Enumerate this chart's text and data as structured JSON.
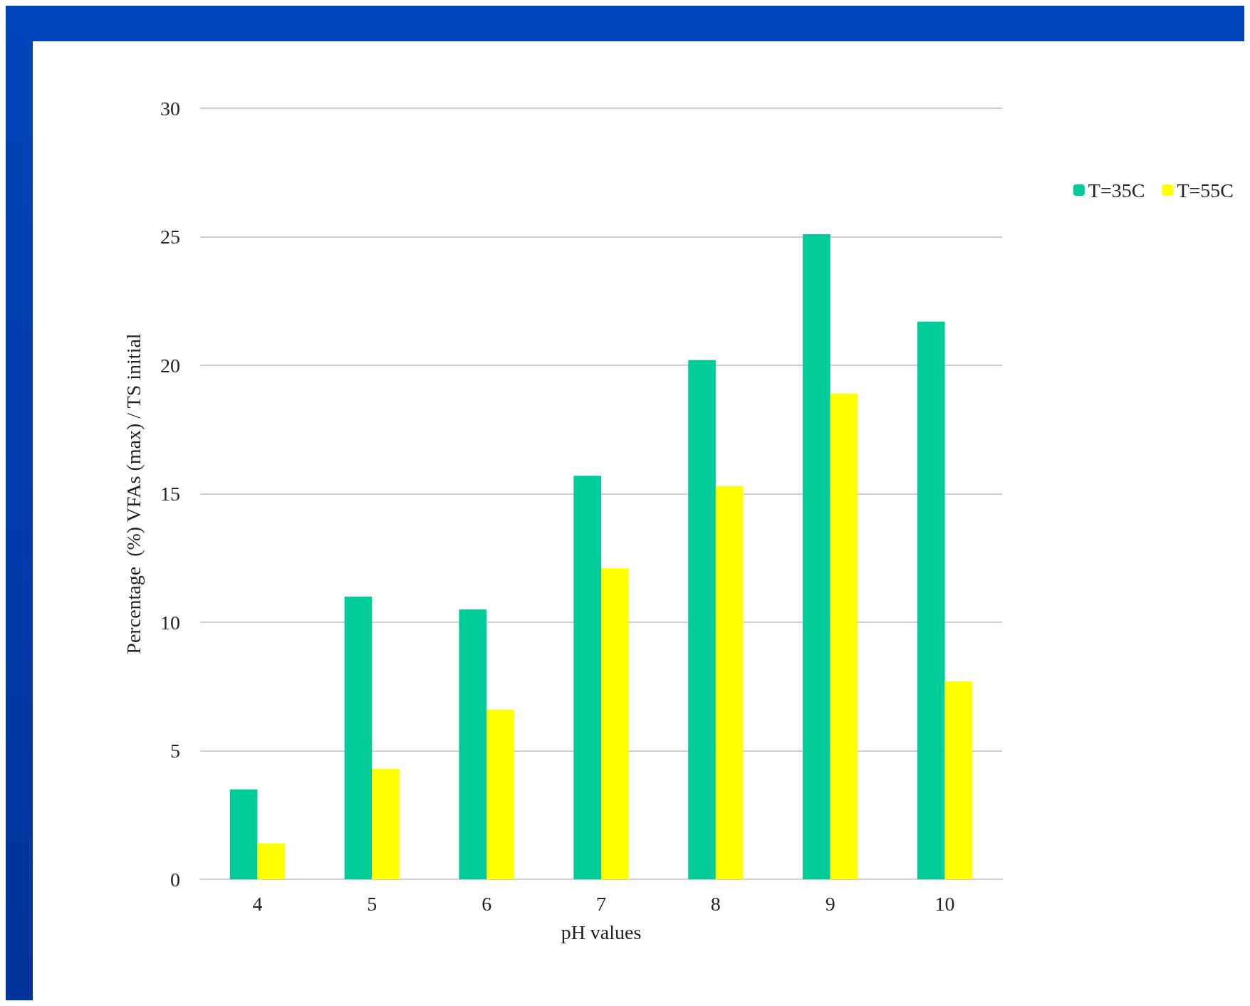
{
  "chart_data": {
    "type": "bar",
    "xlabel": "pH values",
    "ylabel": "Percentage  (%) VFAs (max) / TS initial",
    "categories": [
      "4",
      "5",
      "6",
      "7",
      "8",
      "9",
      "10"
    ],
    "series": [
      {
        "name": "T=35C",
        "color": "#00cc99",
        "values": [
          3.5,
          11.0,
          10.5,
          15.7,
          20.2,
          25.1,
          21.7
        ]
      },
      {
        "name": "T=55C",
        "color": "#ffff00",
        "values": [
          1.4,
          4.3,
          6.6,
          12.1,
          15.3,
          18.9,
          7.7
        ]
      }
    ],
    "ylim": [
      0,
      30
    ],
    "yticks": [
      0,
      5,
      10,
      15,
      20,
      25,
      30
    ],
    "grid": "y",
    "legend": "right"
  }
}
